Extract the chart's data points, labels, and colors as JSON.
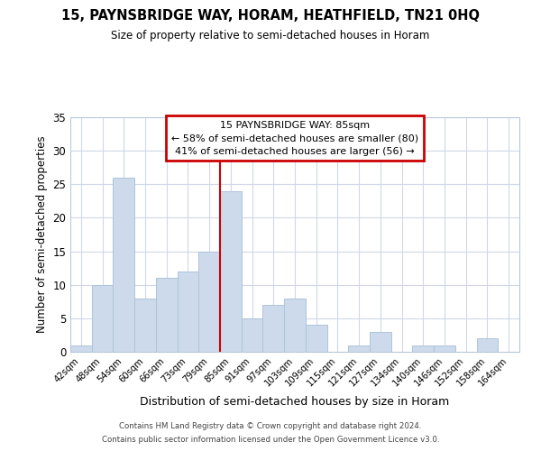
{
  "title1": "15, PAYNSBRIDGE WAY, HORAM, HEATHFIELD, TN21 0HQ",
  "title2": "Size of property relative to semi-detached houses in Horam",
  "xlabel": "Distribution of semi-detached houses by size in Horam",
  "ylabel": "Number of semi-detached properties",
  "bin_labels": [
    "42sqm",
    "48sqm",
    "54sqm",
    "60sqm",
    "66sqm",
    "73sqm",
    "79sqm",
    "85sqm",
    "91sqm",
    "97sqm",
    "103sqm",
    "109sqm",
    "115sqm",
    "121sqm",
    "127sqm",
    "134sqm",
    "140sqm",
    "146sqm",
    "152sqm",
    "158sqm",
    "164sqm"
  ],
  "bar_heights": [
    1,
    10,
    26,
    8,
    11,
    12,
    15,
    24,
    5,
    7,
    8,
    4,
    0,
    1,
    3,
    0,
    1,
    1,
    0,
    2,
    0
  ],
  "bar_color": "#cddaeb",
  "bar_edge_color": "#aec4da",
  "highlight_bar_index": 7,
  "vline_color": "#cc0000",
  "ylim": [
    0,
    35
  ],
  "yticks": [
    0,
    5,
    10,
    15,
    20,
    25,
    30,
    35
  ],
  "annotation_title": "15 PAYNSBRIDGE WAY: 85sqm",
  "annotation_line1": "← 58% of semi-detached houses are smaller (80)",
  "annotation_line2": "41% of semi-detached houses are larger (56) →",
  "annotation_box_color": "#ffffff",
  "annotation_border_color": "#cc0000",
  "footer1": "Contains HM Land Registry data © Crown copyright and database right 2024.",
  "footer2": "Contains public sector information licensed under the Open Government Licence v3.0.",
  "background_color": "#ffffff",
  "grid_color": "#d0d8e8"
}
